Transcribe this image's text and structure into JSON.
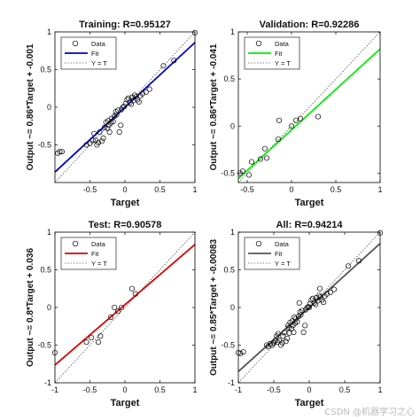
{
  "chart_data": [
    {
      "type": "scatter",
      "title": "Training: R=0.95127",
      "xlabel": "Target",
      "ylabel": "Output ~= 0.86*Target + -0.001",
      "xlim": [
        -1,
        1
      ],
      "ylim": [
        -1,
        1
      ],
      "xticks": [
        "-0.5",
        "0",
        "0.5",
        "1"
      ],
      "yticks": [
        "-0.5",
        "0",
        "0.5",
        "1"
      ],
      "fit_color": "#0000cc",
      "fit": {
        "slope": 0.86,
        "intercept": -0.001
      },
      "legend": [
        "Data",
        "Fit",
        "Y = T"
      ],
      "legend_position": "top-left",
      "x": [
        -0.96,
        -0.93,
        -0.9,
        -0.55,
        -0.5,
        -0.46,
        -0.44,
        -0.42,
        -0.4,
        -0.38,
        -0.36,
        -0.33,
        -0.31,
        -0.29,
        -0.27,
        -0.25,
        -0.24,
        -0.23,
        -0.22,
        -0.2,
        -0.19,
        -0.17,
        -0.15,
        -0.13,
        -0.12,
        -0.1,
        -0.08,
        -0.06,
        -0.05,
        -0.03,
        -0.01,
        0.01,
        0.03,
        0.05,
        0.07,
        0.09,
        0.1,
        0.12,
        0.14,
        0.16,
        0.18,
        0.2,
        0.22,
        0.25,
        0.3,
        0.35,
        0.55,
        0.7,
        1.0
      ],
      "y": [
        -0.61,
        -0.59,
        -0.59,
        -0.5,
        -0.48,
        -0.44,
        -0.35,
        -0.44,
        -0.5,
        -0.47,
        -0.33,
        -0.45,
        -0.41,
        -0.27,
        -0.2,
        -0.28,
        -0.18,
        -0.24,
        -0.33,
        -0.21,
        -0.15,
        -0.19,
        -0.12,
        -0.06,
        -0.1,
        -0.04,
        -0.33,
        -0.24,
        -0.03,
        0.0,
        0.01,
        0.05,
        0.1,
        0.12,
        0.06,
        0.04,
        0.13,
        0.09,
        0.16,
        0.14,
        0.1,
        0.07,
        0.15,
        0.18,
        0.2,
        0.24,
        0.55,
        0.62,
        0.99
      ]
    },
    {
      "type": "scatter",
      "title": "Validation: R=0.92286",
      "xlabel": "Target",
      "ylabel": "Output ~= 0.86*Target + -0.041",
      "xlim": [
        -0.6,
        1
      ],
      "ylim": [
        -0.6,
        1
      ],
      "xticks": [
        "-0.5",
        "0",
        "0.5",
        "1"
      ],
      "yticks": [
        "-0.5",
        "0",
        "0.5",
        "1"
      ],
      "fit_color": "#00ee00",
      "fit": {
        "slope": 0.86,
        "intercept": -0.041
      },
      "legend": [
        "Data",
        "Fit",
        "Y = T"
      ],
      "legend_position": "top-left",
      "x": [
        -0.58,
        -0.55,
        -0.48,
        -0.45,
        -0.35,
        -0.3,
        -0.28,
        -0.15,
        -0.14,
        0.0,
        0.05,
        0.1,
        0.3
      ],
      "y": [
        -0.5,
        -0.48,
        -0.52,
        -0.38,
        -0.35,
        -0.24,
        -0.34,
        -0.14,
        0.06,
        0.0,
        0.06,
        0.08,
        0.1
      ]
    },
    {
      "type": "scatter",
      "title": "Test: R=0.90578",
      "xlabel": "Target",
      "ylabel": "Output ~= 0.8*Target + 0.036",
      "xlim": [
        -1,
        1
      ],
      "ylim": [
        -1,
        1
      ],
      "xticks": [
        "-1",
        "-0.5",
        "0",
        "0.5",
        "1"
      ],
      "yticks": [
        "-1",
        "-0.5",
        "0",
        "0.5",
        "1"
      ],
      "fit_color": "#dd0000",
      "fit": {
        "slope": 0.8,
        "intercept": 0.036
      },
      "legend": [
        "Data",
        "Fit",
        "Y = T"
      ],
      "legend_position": "top-left",
      "x": [
        -1.0,
        -0.55,
        -0.48,
        -0.38,
        -0.35,
        -0.2,
        -0.15,
        -0.1,
        -0.05,
        0.1,
        0.15
      ],
      "y": [
        -0.6,
        -0.46,
        -0.4,
        -0.46,
        -0.38,
        -0.13,
        0.0,
        -0.05,
        0.0,
        0.25,
        0.18
      ]
    },
    {
      "type": "scatter",
      "title": "All: R=0.94214",
      "xlabel": "Target",
      "ylabel": "Output ~= 0.85*Target + -0.00083",
      "xlim": [
        -1,
        1
      ],
      "ylim": [
        -1,
        1
      ],
      "xticks": [
        "-1",
        "-0.5",
        "0",
        "0.5",
        "1"
      ],
      "yticks": [
        "-1",
        "-0.5",
        "0",
        "0.5",
        "1"
      ],
      "fit_color": "#555555",
      "fit": {
        "slope": 0.85,
        "intercept": -0.00083
      },
      "legend": [
        "Data",
        "Fit",
        "Y = T"
      ],
      "legend_position": "top-left",
      "x": [
        -1.0,
        -0.97,
        -0.93,
        -0.6,
        -0.58,
        -0.55,
        -0.52,
        -0.5,
        -0.48,
        -0.46,
        -0.45,
        -0.44,
        -0.42,
        -0.4,
        -0.38,
        -0.37,
        -0.35,
        -0.33,
        -0.31,
        -0.3,
        -0.29,
        -0.28,
        -0.27,
        -0.25,
        -0.24,
        -0.23,
        -0.22,
        -0.21,
        -0.2,
        -0.19,
        -0.17,
        -0.15,
        -0.14,
        -0.13,
        -0.12,
        -0.1,
        -0.08,
        -0.06,
        -0.05,
        -0.03,
        -0.01,
        0.0,
        0.01,
        0.03,
        0.05,
        0.07,
        0.09,
        0.1,
        0.12,
        0.14,
        0.15,
        0.16,
        0.18,
        0.2,
        0.22,
        0.25,
        0.3,
        0.35,
        0.55,
        0.7,
        1.0
      ],
      "y": [
        -0.6,
        -0.61,
        -0.59,
        -0.5,
        -0.52,
        -0.48,
        -0.5,
        -0.47,
        -0.44,
        -0.38,
        -0.46,
        -0.35,
        -0.44,
        -0.5,
        -0.47,
        -0.38,
        -0.33,
        -0.45,
        -0.41,
        -0.24,
        -0.27,
        -0.34,
        -0.2,
        -0.28,
        -0.18,
        -0.24,
        -0.33,
        -0.13,
        -0.21,
        -0.15,
        -0.19,
        -0.12,
        0.06,
        -0.06,
        -0.1,
        -0.04,
        -0.33,
        -0.24,
        -0.03,
        0.0,
        0.01,
        0.0,
        0.05,
        0.1,
        0.12,
        0.06,
        0.04,
        0.13,
        0.09,
        0.16,
        0.25,
        0.14,
        0.1,
        0.07,
        0.15,
        0.18,
        0.2,
        0.24,
        0.55,
        0.62,
        0.99
      ]
    }
  ],
  "watermark": "CSDN @机器学习之心"
}
